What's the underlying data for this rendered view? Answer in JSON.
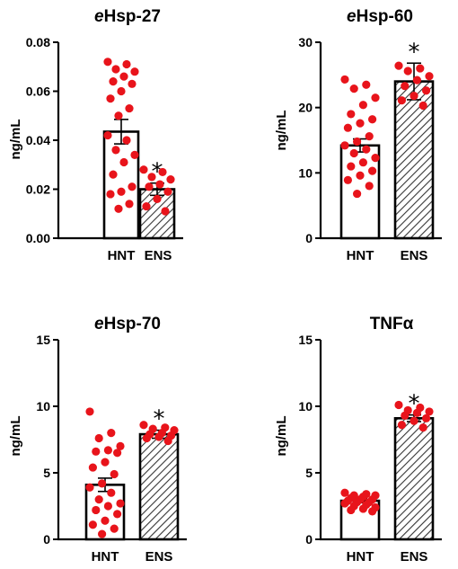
{
  "chart_data": [
    {
      "type": "bar",
      "title_prefix": "e",
      "title_main": "Hsp-27",
      "ylabel": "ng/mL",
      "xlabel": "",
      "ylim": [
        0,
        0.08
      ],
      "yticks": [
        "0.00",
        "0.02",
        "0.04",
        "0.06",
        "0.08"
      ],
      "categories": [
        "HNT",
        "ENS"
      ],
      "means": [
        0.0435,
        0.02
      ],
      "errors": [
        0.005,
        0.0025
      ],
      "significance": [
        "",
        "*"
      ],
      "points": [
        [
          0.072,
          0.071,
          0.069,
          0.068,
          0.066,
          0.064,
          0.063,
          0.06,
          0.057,
          0.053,
          0.05,
          0.042,
          0.04,
          0.036,
          0.034,
          0.031,
          0.026,
          0.021,
          0.019,
          0.018,
          0.014,
          0.012
        ],
        [
          0.028,
          0.027,
          0.025,
          0.024,
          0.022,
          0.021,
          0.019,
          0.016,
          0.013,
          0.011
        ]
      ]
    },
    {
      "type": "bar",
      "title_prefix": "e",
      "title_main": "Hsp-60",
      "ylabel": "ng/mL",
      "xlabel": "",
      "ylim": [
        0,
        30
      ],
      "yticks": [
        "0",
        "10",
        "20",
        "30"
      ],
      "categories": [
        "HNT",
        "ENS"
      ],
      "means": [
        14.2,
        24.0
      ],
      "errors": [
        1.0,
        2.8
      ],
      "significance": [
        "",
        "*"
      ],
      "points": [
        [
          24.3,
          23.5,
          22.9,
          21.5,
          20.4,
          19.0,
          18.2,
          17.6,
          16.9,
          15.6,
          14.8,
          14.2,
          13.6,
          13.0,
          12.3,
          11.6,
          11.0,
          10.3,
          9.6,
          8.9,
          8.0,
          6.8
        ],
        [
          26.4,
          26.0,
          25.6,
          24.8,
          24.2,
          23.3,
          22.6,
          21.8,
          21.1,
          20.3
        ]
      ]
    },
    {
      "type": "bar",
      "title_prefix": "e",
      "title_main": "Hsp-70",
      "ylabel": "ng/mL",
      "xlabel": "",
      "ylim": [
        0,
        15
      ],
      "yticks": [
        "0",
        "5",
        "10",
        "15"
      ],
      "categories": [
        "HNT",
        "ENS"
      ],
      "means": [
        4.1,
        7.9
      ],
      "errors": [
        0.5,
        0.3
      ],
      "significance": [
        "",
        "*"
      ],
      "points": [
        [
          9.6,
          8.0,
          7.6,
          7.0,
          6.7,
          6.6,
          6.5,
          5.8,
          5.4,
          4.9,
          4.2,
          3.9,
          3.5,
          3.0,
          2.7,
          2.5,
          2.2,
          1.9,
          1.4,
          1.1,
          0.8,
          0.4
        ],
        [
          8.6,
          8.4,
          8.3,
          8.2,
          8.0,
          7.9,
          7.8,
          7.7,
          7.6,
          7.4
        ]
      ]
    },
    {
      "type": "bar",
      "title_prefix": "",
      "title_main": "TNFα",
      "ylabel": "ng/mL",
      "xlabel": "",
      "ylim": [
        0,
        15
      ],
      "yticks": [
        "0",
        "5",
        "10",
        "15"
      ],
      "categories": [
        "HNT",
        "ENS"
      ],
      "means": [
        2.9,
        9.1
      ],
      "errors": [
        0.15,
        0.25
      ],
      "significance": [
        "",
        "*"
      ],
      "points": [
        [
          3.5,
          3.4,
          3.3,
          3.3,
          3.2,
          3.1,
          3.0,
          3.0,
          2.9,
          2.8,
          2.8,
          2.7,
          2.6,
          2.5,
          2.4,
          2.3,
          2.2,
          2.1
        ],
        [
          10.1,
          9.9,
          9.7,
          9.6,
          9.5,
          9.3,
          9.1,
          8.9,
          8.6,
          8.4
        ]
      ]
    }
  ],
  "colors": {
    "dot": "#e8141b",
    "bar_edge": "#000000",
    "bar_fill": "#ffffff",
    "hatch": "#333333"
  }
}
